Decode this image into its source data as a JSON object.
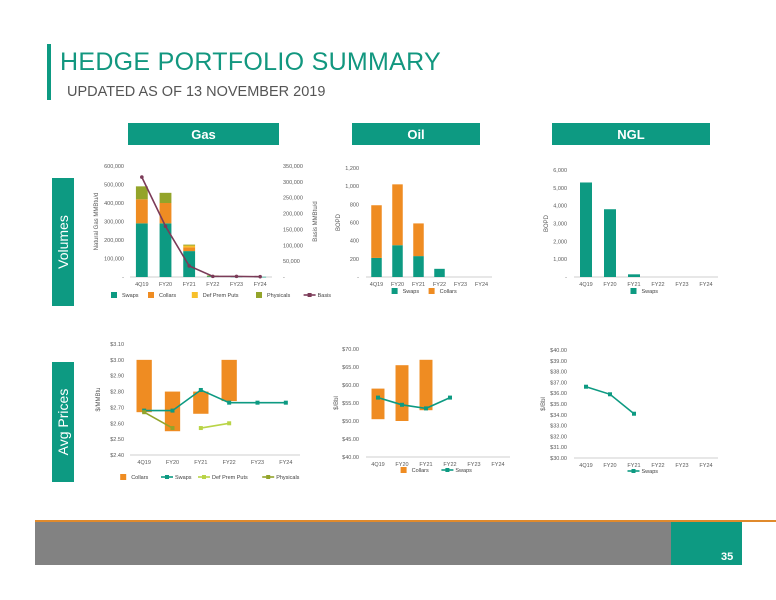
{
  "header": {
    "title": "HEDGE PORTFOLIO SUMMARY",
    "subtitle": "UPDATED AS OF 13 NOVEMBER 2019"
  },
  "columns": {
    "gas": "Gas",
    "oil": "Oil",
    "ngl": "NGL"
  },
  "rows": {
    "volumes": "Volumes",
    "prices": "Avg Prices"
  },
  "footer": {
    "page_number": "35"
  },
  "colors": {
    "teal": "#0d9a82",
    "orange": "#ef8c22",
    "yellow": "#f7c02a",
    "olive": "#93a42a",
    "purple": "#7b3b58",
    "lightgreen": "#b9d447"
  },
  "chart_data": [
    {
      "id": "gas_volumes",
      "type": "bar",
      "categories": [
        "4Q19",
        "FY20",
        "FY21",
        "FY22",
        "FY23",
        "FY24"
      ],
      "ylabel": "Natural Gas MMBtu/d",
      "y2label": "Basis MMBtu/d",
      "ylim": [
        0,
        600000
      ],
      "yticks": [
        "-",
        "100,000",
        "200,000",
        "300,000",
        "400,000",
        "500,000",
        "600,000"
      ],
      "y2lim": [
        0,
        350000
      ],
      "y2ticks": [
        "-",
        "50,000",
        "100,000",
        "150,000",
        "200,000",
        "250,000",
        "300,000",
        "350,000"
      ],
      "stacked": true,
      "series": [
        {
          "name": "Swaps",
          "kind": "bar",
          "color": "#0d9a82",
          "values": [
            290000,
            290000,
            140000,
            3000,
            2000,
            1000
          ]
        },
        {
          "name": "Collars",
          "kind": "bar",
          "color": "#ef8c22",
          "values": [
            130000,
            110000,
            20000,
            0,
            0,
            0
          ]
        },
        {
          "name": "Def Prem Puts",
          "kind": "bar",
          "color": "#f7c02a",
          "values": [
            0,
            0,
            10000,
            0,
            0,
            0
          ]
        },
        {
          "name": "Physicals",
          "kind": "bar",
          "color": "#93a42a",
          "values": [
            70000,
            55000,
            5000,
            5000,
            0,
            0
          ]
        },
        {
          "name": "Basis",
          "kind": "line",
          "axis": "y2",
          "color": "#7b3b58",
          "values": [
            315000,
            160000,
            35000,
            2000,
            2000,
            1000
          ]
        }
      ]
    },
    {
      "id": "oil_volumes",
      "type": "bar",
      "categories": [
        "4Q19",
        "FY20",
        "FY21",
        "FY22",
        "FY23",
        "FY24"
      ],
      "ylabel": "BOPD",
      "ylim": [
        0,
        1200
      ],
      "yticks": [
        "-",
        "200",
        "400",
        "600",
        "800",
        "1,000",
        "1,200"
      ],
      "stacked": true,
      "series": [
        {
          "name": "Swaps",
          "kind": "bar",
          "color": "#0d9a82",
          "values": [
            210,
            350,
            230,
            90,
            0,
            0
          ]
        },
        {
          "name": "Collars",
          "kind": "bar",
          "color": "#ef8c22",
          "values": [
            580,
            670,
            360,
            0,
            0,
            0
          ]
        }
      ]
    },
    {
      "id": "ngl_volumes",
      "type": "bar",
      "categories": [
        "4Q19",
        "FY20",
        "FY21",
        "FY22",
        "FY23",
        "FY24"
      ],
      "ylabel": "BOPD",
      "ylim": [
        0,
        6000
      ],
      "yticks": [
        "-",
        "1,000",
        "2,000",
        "3,000",
        "4,000",
        "5,000",
        "6,000"
      ],
      "stacked": true,
      "series": [
        {
          "name": "Swaps",
          "kind": "bar",
          "color": "#0d9a82",
          "values": [
            5300,
            3800,
            150,
            0,
            0,
            0
          ]
        }
      ]
    },
    {
      "id": "gas_prices",
      "type": "line",
      "categories": [
        "4Q19",
        "FY20",
        "FY21",
        "FY22",
        "FY23",
        "FY24"
      ],
      "ylabel": "$/MMBtu",
      "ylim": [
        2.4,
        3.1
      ],
      "yticks": [
        "$2.40",
        "$2.50",
        "$2.60",
        "$2.70",
        "$2.80",
        "$2.90",
        "$3.00",
        "$3.10"
      ],
      "series": [
        {
          "name": "Collars",
          "kind": "range",
          "color": "#ef8c22",
          "ranges": [
            [
              2.67,
              3.0
            ],
            [
              2.55,
              2.8
            ],
            [
              2.66,
              2.8
            ],
            [
              2.74,
              3.0
            ],
            null,
            null
          ]
        },
        {
          "name": "Swaps",
          "kind": "line",
          "color": "#0d9a82",
          "values": [
            2.68,
            2.68,
            2.81,
            2.73,
            2.73,
            2.73
          ]
        },
        {
          "name": "Def Prem Puts",
          "kind": "line",
          "color": "#b9d447",
          "values": [
            null,
            null,
            2.57,
            2.6,
            null,
            null
          ]
        },
        {
          "name": "Physicals",
          "kind": "line",
          "color": "#93a42a",
          "values": [
            2.67,
            2.57,
            null,
            null,
            null,
            null
          ]
        }
      ]
    },
    {
      "id": "oil_prices",
      "type": "line",
      "categories": [
        "4Q19",
        "FY20",
        "FY21",
        "FY22",
        "FY23",
        "FY24"
      ],
      "ylabel": "$/Bbl",
      "ylim": [
        40,
        70
      ],
      "yticks": [
        "$40.00",
        "$45.00",
        "$50.00",
        "$55.00",
        "$60.00",
        "$65.00",
        "$70.00"
      ],
      "series": [
        {
          "name": "Collars",
          "kind": "range",
          "color": "#ef8c22",
          "ranges": [
            [
              50.5,
              59
            ],
            [
              50,
              65.5
            ],
            [
              53,
              67
            ],
            null,
            null,
            null
          ]
        },
        {
          "name": "Swaps",
          "kind": "line",
          "color": "#0d9a82",
          "values": [
            56.5,
            54.5,
            53.5,
            56.5,
            null,
            null
          ]
        }
      ]
    },
    {
      "id": "ngl_prices",
      "type": "line",
      "categories": [
        "4Q19",
        "FY20",
        "FY21",
        "FY22",
        "FY23",
        "FY24"
      ],
      "ylabel": "$/Bbl",
      "ylim": [
        30,
        40
      ],
      "yticks": [
        "$30.00",
        "$31.00",
        "$32.00",
        "$33.00",
        "$34.00",
        "$35.00",
        "$36.00",
        "$37.00",
        "$38.00",
        "$39.00",
        "$40.00"
      ],
      "series": [
        {
          "name": "Swaps",
          "kind": "line",
          "color": "#0d9a82",
          "values": [
            36.6,
            35.9,
            34.1,
            null,
            null,
            null
          ]
        }
      ]
    }
  ]
}
